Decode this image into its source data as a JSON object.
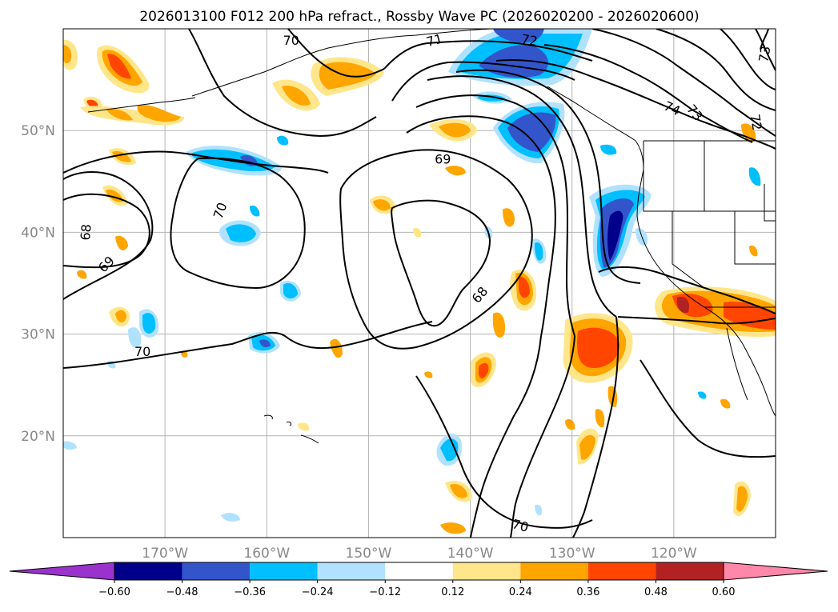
{
  "title": "2026013100 F012 200 hPa refract., Rossby Wave PC (2026020200 - 2026020600)",
  "map": {
    "lon_range": [
      -180,
      -110
    ],
    "lat_range": [
      10,
      60
    ],
    "lon_ticks": [
      {
        "lon": -170,
        "label": "170°W"
      },
      {
        "lon": -160,
        "label": "160°W"
      },
      {
        "lon": -150,
        "label": "150°W"
      },
      {
        "lon": -140,
        "label": "140°W"
      },
      {
        "lon": -130,
        "label": "130°W"
      },
      {
        "lon": -120,
        "label": "120°W"
      }
    ],
    "lat_ticks": [
      {
        "lat": 20,
        "label": "20°N"
      },
      {
        "lat": 30,
        "label": "30°N"
      },
      {
        "lat": 40,
        "label": "40°N"
      },
      {
        "lat": 50,
        "label": "50°N"
      }
    ],
    "grid": true
  },
  "contour_labels": [
    {
      "text": "70",
      "lon": -157.6,
      "lat": 58.8,
      "rot": 0
    },
    {
      "text": "71",
      "lon": -143.5,
      "lat": 58.8,
      "rot": -15
    },
    {
      "text": "72",
      "lon": -134.2,
      "lat": 58.8,
      "rot": 10
    },
    {
      "text": "73",
      "lon": -111.0,
      "lat": 57.5,
      "rot": -80
    },
    {
      "text": "74",
      "lon": -120.2,
      "lat": 52.1,
      "rot": 25
    },
    {
      "text": "73",
      "lon": -118.0,
      "lat": 51.7,
      "rot": 50
    },
    {
      "text": "72",
      "lon": -112.0,
      "lat": 50.8,
      "rot": 80
    },
    {
      "text": "69",
      "lon": -142.7,
      "lat": 47.1,
      "rot": 0
    },
    {
      "text": "70",
      "lon": -164.5,
      "lat": 42.1,
      "rot": -70
    },
    {
      "text": "68",
      "lon": -177.7,
      "lat": 40.0,
      "rot": -85
    },
    {
      "text": "69",
      "lon": -175.7,
      "lat": 36.8,
      "rot": -45
    },
    {
      "text": "68",
      "lon": -139.0,
      "lat": 33.8,
      "rot": -50
    },
    {
      "text": "70",
      "lon": -172.2,
      "lat": 28.2,
      "rot": 0
    },
    {
      "text": "70",
      "lon": -135.1,
      "lat": 11.1,
      "rot": 15
    }
  ],
  "colorbar": {
    "labels": [
      "−0.60",
      "−0.48",
      "−0.36",
      "−0.24",
      "−0.12",
      "0.12",
      "0.24",
      "0.36",
      "0.48",
      "0.60"
    ],
    "colors": {
      "under": "#9933cc",
      "neg_060": "#00008b",
      "neg_048": "#3355cc",
      "neg_036": "#00bfff",
      "neg_024": "#b0e2ff",
      "neutral": "#ffffff",
      "pos_012": "#ffe68a",
      "pos_024": "#ffa500",
      "pos_036": "#ff4500",
      "pos_048": "#b22222",
      "over": "#ff88aa"
    }
  }
}
